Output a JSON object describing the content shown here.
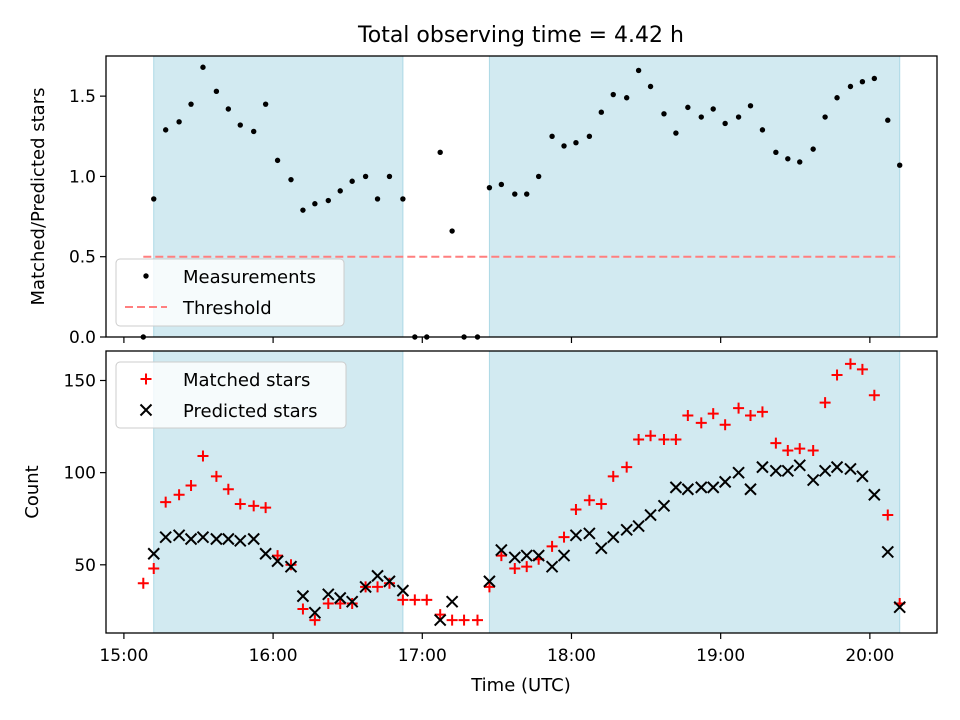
{
  "figure": {
    "title": "Total observing time = 4.42 h",
    "xlabel": "Time (UTC)",
    "x_ticks": [
      "15:00",
      "16:00",
      "17:00",
      "18:00",
      "19:00",
      "20:00"
    ],
    "x_tick_values": [
      15,
      16,
      17,
      18,
      19,
      20
    ],
    "xlim": [
      14.88,
      20.45
    ],
    "highlight_color": "#add8e6",
    "observing_windows": [
      [
        15.2,
        16.87
      ],
      [
        17.45,
        20.2
      ]
    ]
  },
  "chart_data": [
    {
      "type": "scatter",
      "ylabel": "Matched/Predicted stars",
      "ylim": [
        0.0,
        1.75
      ],
      "y_ticks": [
        "0.0",
        "0.5",
        "1.0",
        "1.5"
      ],
      "y_tick_values": [
        0.0,
        0.5,
        1.0,
        1.5
      ],
      "legend_position": "lower-left",
      "series": [
        {
          "name": "Measurements",
          "marker": "dot",
          "color": "#000000",
          "x": [
            15.13,
            15.2,
            15.28,
            15.37,
            15.45,
            15.53,
            15.62,
            15.7,
            15.78,
            15.87,
            15.95,
            16.03,
            16.12,
            16.2,
            16.28,
            16.37,
            16.45,
            16.53,
            16.62,
            16.7,
            16.78,
            16.87,
            16.95,
            17.03,
            17.12,
            17.2,
            17.28,
            17.37,
            17.45,
            17.53,
            17.62,
            17.7,
            17.78,
            17.87,
            17.95,
            18.03,
            18.12,
            18.2,
            18.28,
            18.37,
            18.45,
            18.53,
            18.62,
            18.7,
            18.78,
            18.87,
            18.95,
            19.03,
            19.12,
            19.2,
            19.28,
            19.37,
            19.45,
            19.53,
            19.62,
            19.7,
            19.78,
            19.87,
            19.95,
            20.03,
            20.12,
            20.2
          ],
          "y": [
            0.0,
            0.86,
            1.29,
            1.34,
            1.45,
            1.68,
            1.53,
            1.42,
            1.32,
            1.28,
            1.45,
            1.1,
            0.98,
            0.79,
            0.83,
            0.85,
            0.91,
            0.97,
            1.0,
            0.86,
            1.0,
            0.86,
            0.0,
            0.0,
            1.15,
            0.66,
            0.0,
            0.0,
            0.93,
            0.95,
            0.89,
            0.89,
            1.0,
            1.25,
            1.19,
            1.21,
            1.25,
            1.4,
            1.51,
            1.49,
            1.66,
            1.56,
            1.39,
            1.27,
            1.43,
            1.37,
            1.42,
            1.33,
            1.37,
            1.44,
            1.29,
            1.15,
            1.11,
            1.09,
            1.17,
            1.37,
            1.49,
            1.56,
            1.59,
            1.61,
            1.35,
            1.07
          ]
        },
        {
          "name": "Threshold",
          "type": "line",
          "style": "dashed",
          "color": "#ff7f7f",
          "x": [
            15.13,
            20.2
          ],
          "y": [
            0.5,
            0.5
          ]
        }
      ]
    },
    {
      "type": "scatter",
      "ylabel": "Count",
      "ylim": [
        13,
        166
      ],
      "y_ticks": [
        "50",
        "100",
        "150"
      ],
      "y_tick_values": [
        50,
        100,
        150
      ],
      "legend_position": "upper-left",
      "series": [
        {
          "name": "Matched stars",
          "marker": "plus",
          "color": "#ff0000",
          "x": [
            15.13,
            15.2,
            15.28,
            15.37,
            15.45,
            15.53,
            15.62,
            15.7,
            15.78,
            15.87,
            15.95,
            16.03,
            16.12,
            16.2,
            16.28,
            16.37,
            16.45,
            16.53,
            16.62,
            16.7,
            16.78,
            16.87,
            16.95,
            17.03,
            17.12,
            17.2,
            17.28,
            17.37,
            17.45,
            17.53,
            17.62,
            17.7,
            17.78,
            17.87,
            17.95,
            18.03,
            18.12,
            18.2,
            18.28,
            18.37,
            18.45,
            18.53,
            18.62,
            18.7,
            18.78,
            18.87,
            18.95,
            19.03,
            19.12,
            19.2,
            19.28,
            19.37,
            19.45,
            19.53,
            19.62,
            19.7,
            19.78,
            19.87,
            19.95,
            20.03,
            20.12,
            20.2
          ],
          "y": [
            40,
            48,
            84,
            88,
            93,
            109,
            98,
            91,
            83,
            82,
            81,
            55,
            50,
            26,
            20,
            29,
            29,
            29,
            38,
            38,
            40,
            31,
            31,
            31,
            23,
            20,
            20,
            20,
            38,
            55,
            48,
            49,
            53,
            60,
            65,
            80,
            85,
            83,
            98,
            103,
            118,
            120,
            118,
            118,
            131,
            127,
            132,
            126,
            135,
            131,
            133,
            116,
            112,
            113,
            112,
            138,
            153,
            159,
            156,
            142,
            77,
            29
          ]
        },
        {
          "name": "Predicted stars",
          "marker": "x",
          "color": "#000000",
          "x": [
            15.2,
            15.28,
            15.37,
            15.45,
            15.53,
            15.62,
            15.7,
            15.78,
            15.87,
            15.95,
            16.03,
            16.12,
            16.2,
            16.28,
            16.37,
            16.45,
            16.53,
            16.62,
            16.7,
            16.78,
            16.87,
            17.12,
            17.2,
            17.45,
            17.53,
            17.62,
            17.7,
            17.78,
            17.87,
            17.95,
            18.03,
            18.12,
            18.2,
            18.28,
            18.37,
            18.45,
            18.53,
            18.62,
            18.7,
            18.78,
            18.87,
            18.95,
            19.03,
            19.12,
            19.2,
            19.28,
            19.37,
            19.45,
            19.53,
            19.62,
            19.7,
            19.78,
            19.87,
            19.95,
            20.03,
            20.12,
            20.2
          ],
          "y": [
            56,
            65,
            66,
            64,
            65,
            64,
            64,
            63,
            64,
            56,
            52,
            49,
            33,
            24,
            34,
            32,
            30,
            38,
            44,
            41,
            36,
            20,
            30,
            41,
            58,
            54,
            55,
            55,
            49,
            55,
            66,
            67,
            59,
            65,
            69,
            71,
            77,
            82,
            92,
            91,
            92,
            92,
            95,
            100,
            91,
            103,
            101,
            101,
            104,
            96,
            101,
            103,
            102,
            98,
            88,
            57,
            27
          ]
        }
      ]
    }
  ]
}
